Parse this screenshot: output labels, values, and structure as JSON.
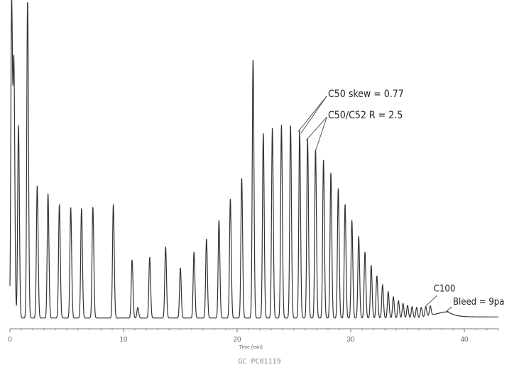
{
  "chart_data": {
    "type": "line",
    "title": "",
    "xlabel": "Time (min)",
    "ylabel": "",
    "xlim": [
      0,
      43
    ],
    "x_ticks": [
      0,
      10,
      20,
      30,
      40
    ],
    "grid": false,
    "legend": "none",
    "line_color": "#333333",
    "baseline": 0.03,
    "bleed_onset": {
      "start": 36.0,
      "level": 0.055
    },
    "peaks": [
      {
        "t": 0.15,
        "h": 1.2
      },
      {
        "t": 0.35,
        "h": 0.93
      },
      {
        "t": 0.75,
        "h": 0.73
      },
      {
        "t": 1.55,
        "h": 1.2
      },
      {
        "t": 2.4,
        "h": 0.5
      },
      {
        "t": 3.35,
        "h": 0.47
      },
      {
        "t": 4.35,
        "h": 0.43
      },
      {
        "t": 5.35,
        "h": 0.42
      },
      {
        "t": 6.3,
        "h": 0.415
      },
      {
        "t": 7.3,
        "h": 0.42
      },
      {
        "t": 9.1,
        "h": 0.43
      },
      {
        "t": 10.75,
        "h": 0.22
      },
      {
        "t": 11.25,
        "h": 0.04
      },
      {
        "t": 12.3,
        "h": 0.23
      },
      {
        "t": 13.7,
        "h": 0.27
      },
      {
        "t": 15.0,
        "h": 0.19
      },
      {
        "t": 16.2,
        "h": 0.25
      },
      {
        "t": 17.3,
        "h": 0.3
      },
      {
        "t": 18.4,
        "h": 0.37
      },
      {
        "t": 19.4,
        "h": 0.45
      },
      {
        "t": 20.4,
        "h": 0.53
      },
      {
        "t": 21.4,
        "h": 0.98
      },
      {
        "t": 22.3,
        "h": 0.7
      },
      {
        "t": 23.1,
        "h": 0.72
      },
      {
        "t": 23.9,
        "h": 0.73
      },
      {
        "t": 24.7,
        "h": 0.73
      },
      {
        "t": 25.5,
        "h": 0.71
      },
      {
        "t": 26.2,
        "h": 0.68
      },
      {
        "t": 26.9,
        "h": 0.64
      },
      {
        "t": 27.6,
        "h": 0.6
      },
      {
        "t": 28.25,
        "h": 0.55
      },
      {
        "t": 28.9,
        "h": 0.49
      },
      {
        "t": 29.5,
        "h": 0.43
      },
      {
        "t": 30.1,
        "h": 0.37
      },
      {
        "t": 30.7,
        "h": 0.31
      },
      {
        "t": 31.25,
        "h": 0.25
      },
      {
        "t": 31.8,
        "h": 0.2
      },
      {
        "t": 32.3,
        "h": 0.16
      },
      {
        "t": 32.8,
        "h": 0.125
      },
      {
        "t": 33.3,
        "h": 0.1
      },
      {
        "t": 33.75,
        "h": 0.08
      },
      {
        "t": 34.2,
        "h": 0.065
      },
      {
        "t": 34.6,
        "h": 0.055
      },
      {
        "t": 35.0,
        "h": 0.048
      },
      {
        "t": 35.4,
        "h": 0.043
      },
      {
        "t": 35.8,
        "h": 0.04
      },
      {
        "t": 36.2,
        "h": 0.038
      },
      {
        "t": 36.6,
        "h": 0.037
      },
      {
        "t": 37.0,
        "h": 0.036
      }
    ],
    "annotations": [
      {
        "text": "C50 skew = 0.77",
        "x": 28.0,
        "y": 0.865
      },
      {
        "text": "C50/C52 R = 2.5",
        "x": 28.0,
        "y": 0.785
      },
      {
        "text": "C100",
        "x": 37.3,
        "y": 0.13
      },
      {
        "text": "Bleed = 9pa",
        "x": 39.0,
        "y": 0.08
      }
    ]
  },
  "footer_code": "GC PC01119"
}
